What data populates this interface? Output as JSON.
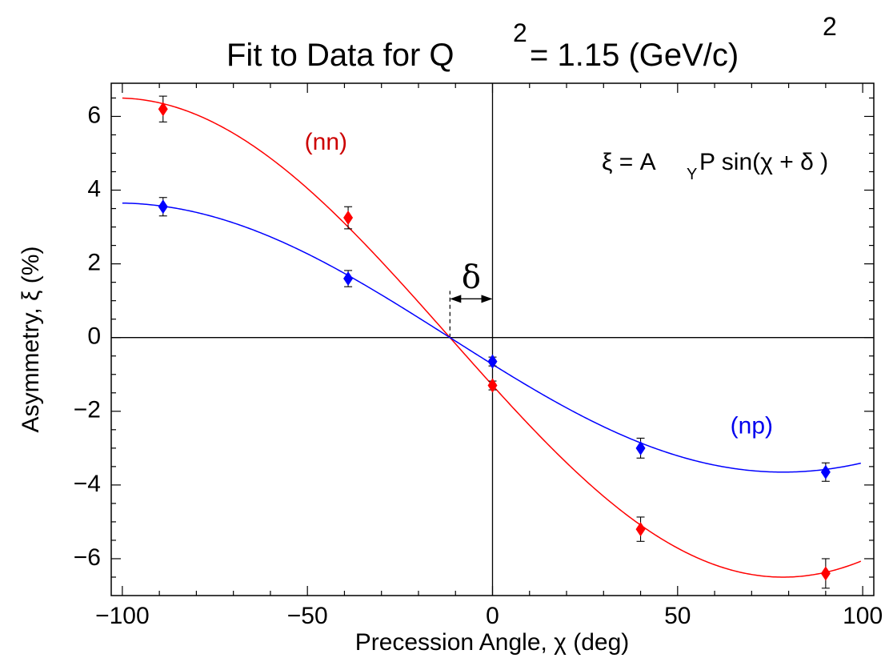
{
  "chart_data": {
    "type": "scatter",
    "title": {
      "prefix": "Fit to Data for Q",
      "sup1": "2",
      "suffix": "= 1.15 (GeV/c)",
      "sup2": "2"
    },
    "xlabel": "Precession Angle, χ (deg)",
    "ylabel": "Asymmetry, ξ (%)",
    "xlim": [
      -103,
      103
    ],
    "ylim": [
      -7.0,
      6.9
    ],
    "x_ticks": [
      -100,
      -50,
      0,
      50,
      100
    ],
    "x_tick_labels": [
      "−100",
      "−50",
      "0",
      "50",
      "100"
    ],
    "y_ticks": [
      -6,
      -4,
      -2,
      0,
      2,
      4,
      6
    ],
    "y_tick_labels": [
      "−6",
      "−4",
      "−2",
      "0",
      "2",
      "4",
      "6"
    ],
    "grid": false,
    "annotations": {
      "formula_lhs": "ξ = A",
      "formula_sub": "Y",
      "formula_rhs": "P sin(χ + δ )",
      "delta_symbol": "δ",
      "delta_degrees": -11.5,
      "delta_arrow_y": 1.05
    },
    "series": [
      {
        "name": "(nn)",
        "color": "#ff0000",
        "label_color": "#cc0000",
        "label_at": [
          -45,
          5.1
        ],
        "amplitude": 6.5,
        "points": [
          {
            "x": -89,
            "y": 6.2,
            "err": 0.35
          },
          {
            "x": -39,
            "y": 3.25,
            "err": 0.3
          },
          {
            "x": 0,
            "y": -1.3,
            "err": 0.12
          },
          {
            "x": 40,
            "y": -5.2,
            "err": 0.33
          },
          {
            "x": 90,
            "y": -6.4,
            "err": 0.4
          }
        ]
      },
      {
        "name": "(np)",
        "color": "#0000ff",
        "label_color": "#0000ee",
        "label_at": [
          70,
          -2.6
        ],
        "amplitude": 3.65,
        "points": [
          {
            "x": -89,
            "y": 3.55,
            "err": 0.25
          },
          {
            "x": -39,
            "y": 1.6,
            "err": 0.22
          },
          {
            "x": 0,
            "y": -0.65,
            "err": 0.12
          },
          {
            "x": 40,
            "y": -3.0,
            "err": 0.27
          },
          {
            "x": 90,
            "y": -3.65,
            "err": 0.25
          }
        ]
      }
    ]
  }
}
